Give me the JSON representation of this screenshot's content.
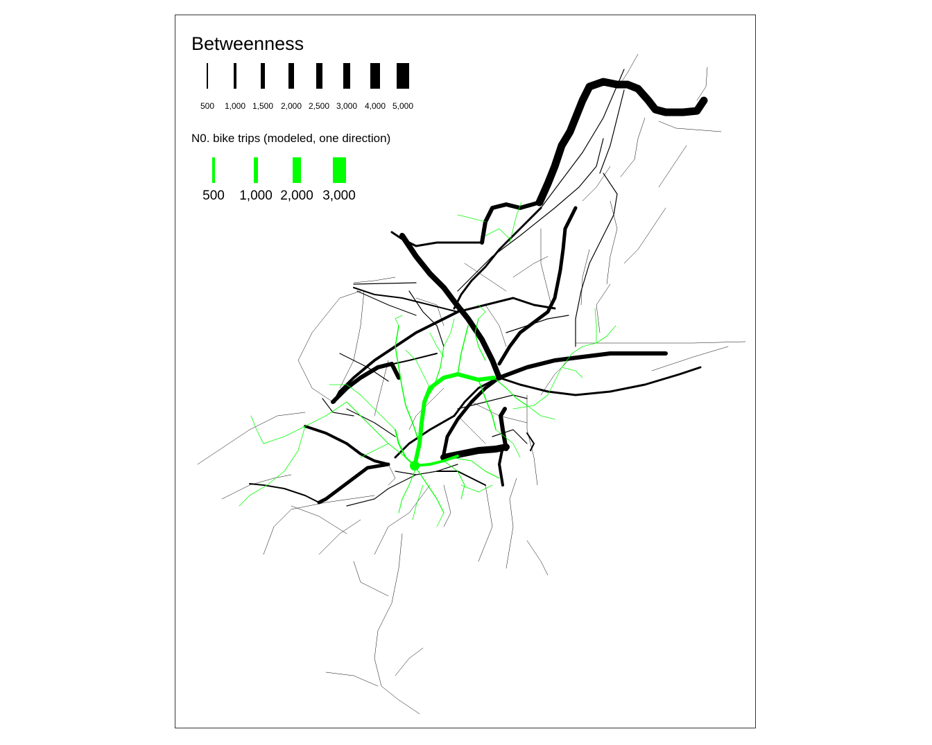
{
  "legend_betweenness": {
    "title": "Betweenness",
    "color": "#000000",
    "items": [
      {
        "label": "500",
        "value": 500
      },
      {
        "label": "1,000",
        "value": 1000
      },
      {
        "label": "1,500",
        "value": 1500
      },
      {
        "label": "2,000",
        "value": 2000
      },
      {
        "label": "2,500",
        "value": 2500
      },
      {
        "label": "3,000",
        "value": 3000
      },
      {
        "label": "4,000",
        "value": 4000
      },
      {
        "label": "5,000",
        "value": 5000
      }
    ]
  },
  "legend_bike": {
    "title": "N0. bike trips (modeled, one direction)",
    "color": "#00ff00",
    "items": [
      {
        "label": "500",
        "value": 500
      },
      {
        "label": "1,000",
        "value": 1000
      },
      {
        "label": "2,000",
        "value": 2000
      },
      {
        "label": "3,000",
        "value": 3000
      }
    ]
  },
  "colors": {
    "network": "#000000",
    "bike_routes": "#00ff00",
    "frame": "#333333"
  }
}
